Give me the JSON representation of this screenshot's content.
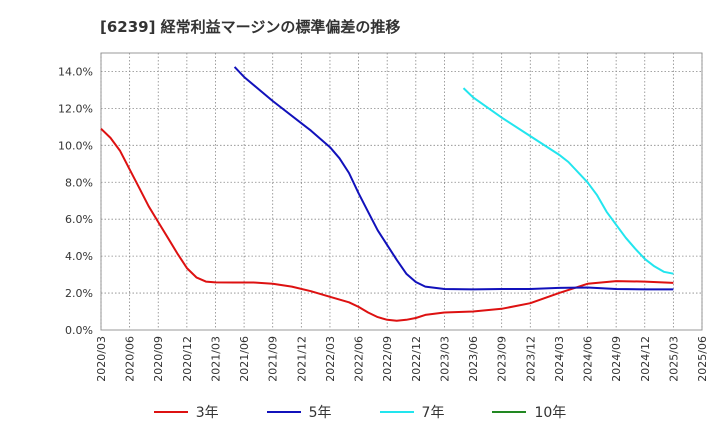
{
  "title": "[6239]  経常利益マージンの標準偏差の推移",
  "chart_data": {
    "type": "line",
    "title": "[6239]  経常利益マージンの標準偏差の推移",
    "xlabel": "",
    "ylabel": "",
    "x_ticks": [
      "2020/03",
      "2020/06",
      "2020/09",
      "2020/12",
      "2021/03",
      "2021/06",
      "2021/09",
      "2021/12",
      "2022/03",
      "2022/06",
      "2022/09",
      "2022/12",
      "2023/03",
      "2023/06",
      "2023/09",
      "2023/12",
      "2024/03",
      "2024/06",
      "2024/09",
      "2024/12",
      "2025/03",
      "2025/06"
    ],
    "y_ticks": [
      "0.0%",
      "2.0%",
      "4.0%",
      "6.0%",
      "8.0%",
      "10.0%",
      "12.0%",
      "14.0%"
    ],
    "ylim": [
      0,
      15
    ],
    "xlim": [
      "2020/03",
      "2025/06"
    ],
    "grid": true,
    "legend_position": "bottom",
    "series": [
      {
        "name": "3年",
        "color": "#dd1111",
        "points": [
          [
            "2020/03",
            10.9
          ],
          [
            "2020/04",
            10.4
          ],
          [
            "2020/05",
            9.7
          ],
          [
            "2020/06",
            8.7
          ],
          [
            "2020/07",
            7.7
          ],
          [
            "2020/08",
            6.7
          ],
          [
            "2020/09",
            5.85
          ],
          [
            "2020/10",
            5.0
          ],
          [
            "2020/11",
            4.15
          ],
          [
            "2020/12",
            3.35
          ],
          [
            "2021/01",
            2.85
          ],
          [
            "2021/02",
            2.62
          ],
          [
            "2021/03",
            2.58
          ],
          [
            "2021/05",
            2.57
          ],
          [
            "2021/07",
            2.57
          ],
          [
            "2021/09",
            2.5
          ],
          [
            "2021/11",
            2.35
          ],
          [
            "2022/01",
            2.1
          ],
          [
            "2022/03",
            1.8
          ],
          [
            "2022/05",
            1.5
          ],
          [
            "2022/06",
            1.25
          ],
          [
            "2022/07",
            0.95
          ],
          [
            "2022/08",
            0.7
          ],
          [
            "2022/09",
            0.55
          ],
          [
            "2022/10",
            0.5
          ],
          [
            "2022/11",
            0.55
          ],
          [
            "2022/12",
            0.65
          ],
          [
            "2023/01",
            0.82
          ],
          [
            "2023/03",
            0.95
          ],
          [
            "2023/06",
            1.0
          ],
          [
            "2023/09",
            1.15
          ],
          [
            "2023/12",
            1.45
          ],
          [
            "2024/03",
            2.0
          ],
          [
            "2024/06",
            2.5
          ],
          [
            "2024/09",
            2.65
          ],
          [
            "2024/12",
            2.62
          ],
          [
            "2025/03",
            2.55
          ]
        ]
      },
      {
        "name": "5年",
        "color": "#1111bb",
        "points": [
          [
            "2021/05",
            14.25
          ],
          [
            "2021/06",
            13.7
          ],
          [
            "2021/09",
            12.4
          ],
          [
            "2021/12",
            11.2
          ],
          [
            "2022/01",
            10.8
          ],
          [
            "2022/03",
            9.9
          ],
          [
            "2022/04",
            9.3
          ],
          [
            "2022/05",
            8.5
          ],
          [
            "2022/06",
            7.4
          ],
          [
            "2022/07",
            6.4
          ],
          [
            "2022/08",
            5.4
          ],
          [
            "2022/09",
            4.6
          ],
          [
            "2022/10",
            3.8
          ],
          [
            "2022/11",
            3.05
          ],
          [
            "2022/12",
            2.6
          ],
          [
            "2023/01",
            2.35
          ],
          [
            "2023/03",
            2.22
          ],
          [
            "2023/06",
            2.2
          ],
          [
            "2023/09",
            2.22
          ],
          [
            "2023/12",
            2.22
          ],
          [
            "2024/03",
            2.28
          ],
          [
            "2024/06",
            2.3
          ],
          [
            "2024/09",
            2.22
          ],
          [
            "2024/12",
            2.2
          ],
          [
            "2025/03",
            2.2
          ]
        ]
      },
      {
        "name": "7年",
        "color": "#22e5ee",
        "points": [
          [
            "2023/05",
            13.1
          ],
          [
            "2023/06",
            12.6
          ],
          [
            "2023/09",
            11.5
          ],
          [
            "2023/12",
            10.5
          ],
          [
            "2024/03",
            9.5
          ],
          [
            "2024/04",
            9.1
          ],
          [
            "2024/06",
            8.0
          ],
          [
            "2024/07",
            7.3
          ],
          [
            "2024/08",
            6.4
          ],
          [
            "2024/09",
            5.7
          ],
          [
            "2024/10",
            5.0
          ],
          [
            "2024/11",
            4.4
          ],
          [
            "2024/12",
            3.85
          ],
          [
            "2025/01",
            3.45
          ],
          [
            "2025/02",
            3.15
          ],
          [
            "2025/03",
            3.05
          ]
        ]
      },
      {
        "name": "10年",
        "color": "#228822",
        "points": []
      }
    ]
  }
}
